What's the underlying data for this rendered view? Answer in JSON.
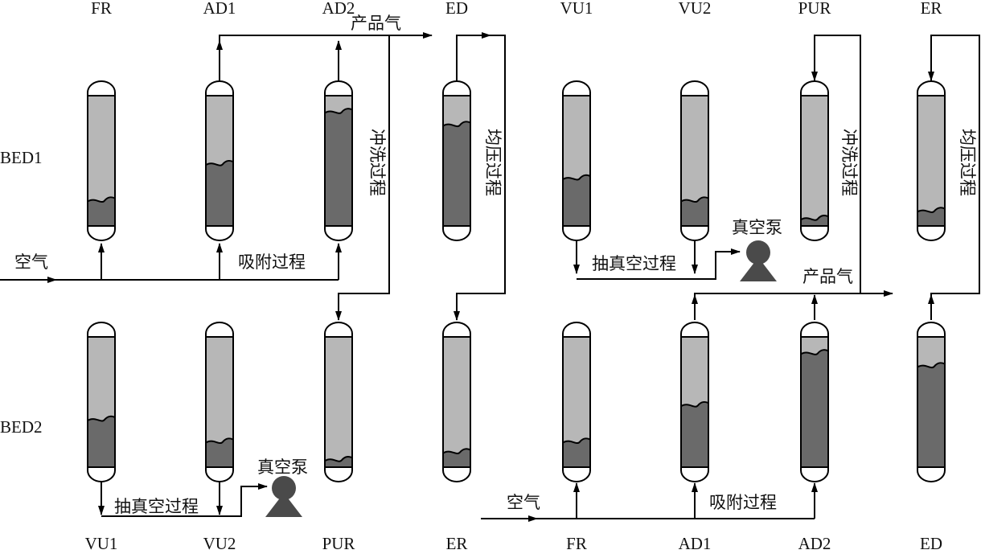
{
  "diagram": {
    "top_phase_labels": [
      "FR",
      "AD1",
      "AD2",
      "ED",
      "VU1",
      "VU2",
      "PUR",
      "ER"
    ],
    "bottom_phase_labels": [
      "VU1",
      "VU2",
      "PUR",
      "ER",
      "FR",
      "AD1",
      "AD2",
      "ED"
    ],
    "bed_labels": [
      "BED1",
      "BED2"
    ],
    "bed1_levels": [
      0.2,
      0.48,
      0.88,
      0.78,
      0.37,
      0.2,
      0.06,
      0.12
    ],
    "bed2_levels": [
      0.37,
      0.2,
      0.06,
      0.12,
      0.2,
      0.48,
      0.88,
      0.78
    ],
    "texts": {
      "air_left": "空气",
      "adsorption_left": "吸附过程",
      "product_gas_top": "产品气",
      "purge_left": "冲洗过程",
      "equalize_left": "均压过程",
      "vacuum_top": "抽真空过程",
      "pump_top": "真空泵",
      "purge_right": "冲洗过程",
      "equalize_right": "均压过程",
      "product_gas_right": "产品气",
      "vacuum_bottom": "抽真空过程",
      "pump_bottom": "真空泵",
      "air_right": "空气",
      "adsorption_right": "吸附过程"
    },
    "colors": {
      "gas": "#b7b7b7",
      "saturated": "#6a6a6a",
      "pump": "#4a4a4a",
      "line": "#000000"
    }
  }
}
